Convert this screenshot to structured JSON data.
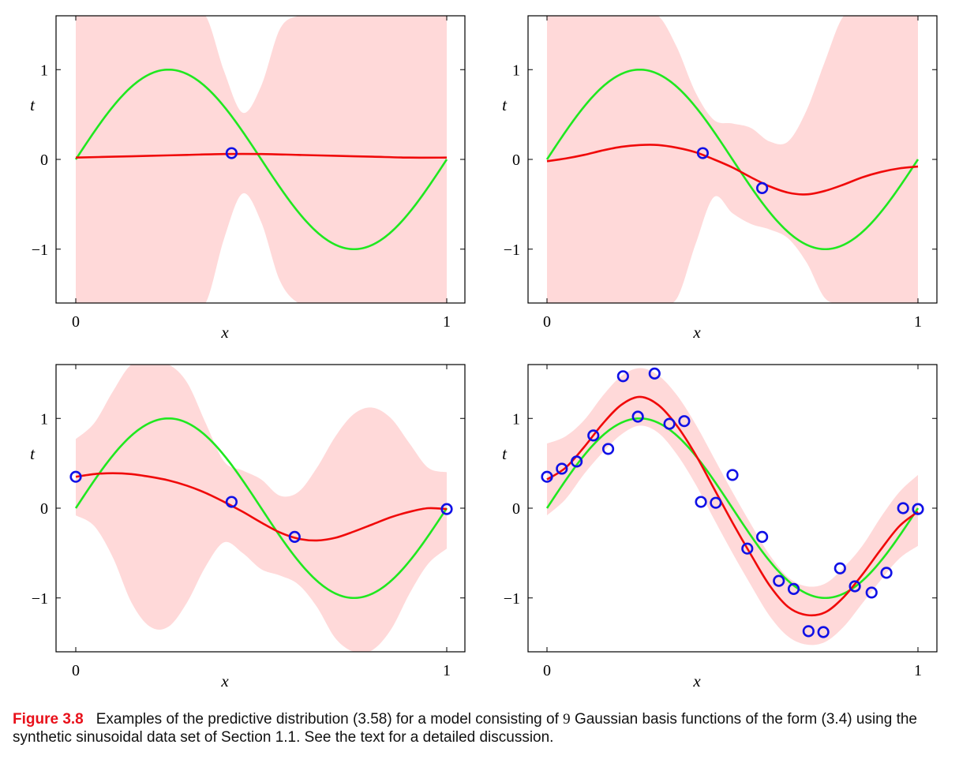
{
  "figure": {
    "colors": {
      "band": "#ffd9d9",
      "mean": "#f00a0a",
      "truth": "#1fe81f",
      "points": "#1010e6",
      "axis": "#000000"
    },
    "x_range": [
      0,
      1
    ],
    "y_range": [
      -1.6,
      1.6
    ],
    "yticks": [
      {
        "v": 1,
        "label": "1"
      },
      {
        "v": 0,
        "label": "0"
      },
      {
        "v": -1,
        "label": "−1"
      }
    ],
    "xticks": [
      {
        "v": 0,
        "label": "0"
      },
      {
        "v": 1,
        "label": "1"
      }
    ]
  },
  "caption": {
    "label": "Figure 3.8",
    "text_before": "Examples of the predictive distribution (3.58) for a model consisting of",
    "n": "9",
    "text_after": "Gaussian basis functions of the form (3.4) using the synthetic sinusoidal data set of Section 1.1. See the text for a detailed discussion."
  },
  "chart_data": [
    {
      "type": "line",
      "xlabel": "x",
      "ylabel": "t",
      "xlim": [
        0,
        1
      ],
      "ylim": [
        -1.6,
        1.6
      ],
      "truth": {
        "function": "sin(2*pi*x)",
        "x": [
          0,
          0.05,
          0.1,
          0.15,
          0.2,
          0.25,
          0.3,
          0.35,
          0.4,
          0.45,
          0.5,
          0.55,
          0.6,
          0.65,
          0.7,
          0.75,
          0.8,
          0.85,
          0.9,
          0.95,
          1.0
        ],
        "y": [
          0,
          0.31,
          0.59,
          0.81,
          0.95,
          1.0,
          0.95,
          0.81,
          0.59,
          0.31,
          0,
          -0.31,
          -0.59,
          -0.81,
          -0.95,
          -1.0,
          -0.95,
          -0.81,
          -0.59,
          -0.31,
          0
        ]
      },
      "mean": {
        "x": [
          0,
          0.1,
          0.2,
          0.3,
          0.4,
          0.5,
          0.6,
          0.7,
          0.8,
          0.9,
          1.0
        ],
        "y": [
          0.02,
          0.03,
          0.04,
          0.05,
          0.06,
          0.06,
          0.05,
          0.04,
          0.03,
          0.02,
          0.02
        ]
      },
      "band": {
        "x": [
          0,
          0.05,
          0.1,
          0.15,
          0.2,
          0.25,
          0.3,
          0.35,
          0.4,
          0.45,
          0.5,
          0.55,
          0.6,
          0.65,
          0.7,
          0.75,
          0.8,
          0.85,
          0.9,
          0.95,
          1.0
        ],
        "upper": [
          1.6,
          1.6,
          1.6,
          1.6,
          1.6,
          1.6,
          1.6,
          1.6,
          0.98,
          0.52,
          0.82,
          1.45,
          1.6,
          1.6,
          1.6,
          1.6,
          1.6,
          1.6,
          1.6,
          1.6,
          1.6
        ],
        "lower": [
          -1.6,
          -1.6,
          -1.6,
          -1.6,
          -1.6,
          -1.6,
          -1.6,
          -1.6,
          -0.88,
          -0.38,
          -0.7,
          -1.35,
          -1.6,
          -1.6,
          -1.6,
          -1.6,
          -1.6,
          -1.6,
          -1.6,
          -1.6,
          -1.6
        ]
      },
      "points": {
        "x": [
          0.42
        ],
        "y": [
          0.07
        ]
      }
    },
    {
      "type": "line",
      "xlabel": "x",
      "ylabel": "t",
      "xlim": [
        0,
        1
      ],
      "ylim": [
        -1.6,
        1.6
      ],
      "truth": {
        "function": "sin(2*pi*x)",
        "x": [
          0,
          0.05,
          0.1,
          0.15,
          0.2,
          0.25,
          0.3,
          0.35,
          0.4,
          0.45,
          0.5,
          0.55,
          0.6,
          0.65,
          0.7,
          0.75,
          0.8,
          0.85,
          0.9,
          0.95,
          1.0
        ],
        "y": [
          0,
          0.31,
          0.59,
          0.81,
          0.95,
          1.0,
          0.95,
          0.81,
          0.59,
          0.31,
          0,
          -0.31,
          -0.59,
          -0.81,
          -0.95,
          -1.0,
          -0.95,
          -0.81,
          -0.59,
          -0.31,
          0
        ]
      },
      "mean": {
        "x": [
          0,
          0.05,
          0.1,
          0.15,
          0.2,
          0.25,
          0.3,
          0.35,
          0.4,
          0.45,
          0.5,
          0.55,
          0.6,
          0.65,
          0.7,
          0.75,
          0.8,
          0.85,
          0.9,
          0.95,
          1.0
        ],
        "y": [
          -0.02,
          0.01,
          0.05,
          0.1,
          0.14,
          0.16,
          0.16,
          0.13,
          0.08,
          0.0,
          -0.09,
          -0.2,
          -0.3,
          -0.37,
          -0.39,
          -0.35,
          -0.28,
          -0.2,
          -0.14,
          -0.1,
          -0.08
        ]
      },
      "band": {
        "x": [
          0,
          0.05,
          0.1,
          0.15,
          0.2,
          0.25,
          0.3,
          0.35,
          0.4,
          0.45,
          0.5,
          0.55,
          0.6,
          0.65,
          0.7,
          0.75,
          0.8,
          0.85,
          0.9,
          0.95,
          1.0
        ],
        "upper": [
          1.6,
          1.6,
          1.6,
          1.6,
          1.6,
          1.6,
          1.6,
          1.25,
          0.75,
          0.44,
          0.4,
          0.35,
          0.2,
          0.2,
          0.55,
          1.1,
          1.6,
          1.6,
          1.6,
          1.6,
          1.6
        ],
        "lower": [
          -1.6,
          -1.6,
          -1.6,
          -1.6,
          -1.6,
          -1.6,
          -1.6,
          -1.55,
          -0.95,
          -0.42,
          -0.6,
          -0.72,
          -0.78,
          -0.88,
          -1.15,
          -1.55,
          -1.6,
          -1.6,
          -1.6,
          -1.6,
          -1.6
        ]
      },
      "points": {
        "x": [
          0.42,
          0.58
        ],
        "y": [
          0.07,
          -0.32
        ]
      }
    },
    {
      "type": "line",
      "xlabel": "x",
      "ylabel": "t",
      "xlim": [
        0,
        1
      ],
      "ylim": [
        -1.6,
        1.6
      ],
      "truth": {
        "function": "sin(2*pi*x)",
        "x": [
          0,
          0.05,
          0.1,
          0.15,
          0.2,
          0.25,
          0.3,
          0.35,
          0.4,
          0.45,
          0.5,
          0.55,
          0.6,
          0.65,
          0.7,
          0.75,
          0.8,
          0.85,
          0.9,
          0.95,
          1.0
        ],
        "y": [
          0,
          0.31,
          0.59,
          0.81,
          0.95,
          1.0,
          0.95,
          0.81,
          0.59,
          0.31,
          0,
          -0.31,
          -0.59,
          -0.81,
          -0.95,
          -1.0,
          -0.95,
          -0.81,
          -0.59,
          -0.31,
          0
        ]
      },
      "mean": {
        "x": [
          0,
          0.05,
          0.1,
          0.15,
          0.2,
          0.25,
          0.3,
          0.35,
          0.4,
          0.45,
          0.5,
          0.55,
          0.6,
          0.65,
          0.7,
          0.75,
          0.8,
          0.85,
          0.9,
          0.95,
          1.0
        ],
        "y": [
          0.35,
          0.38,
          0.39,
          0.38,
          0.35,
          0.31,
          0.25,
          0.17,
          0.07,
          -0.04,
          -0.16,
          -0.27,
          -0.34,
          -0.36,
          -0.33,
          -0.26,
          -0.18,
          -0.1,
          -0.04,
          0.0,
          -0.01
        ]
      },
      "band": {
        "x": [
          0,
          0.05,
          0.1,
          0.15,
          0.2,
          0.25,
          0.3,
          0.35,
          0.4,
          0.45,
          0.5,
          0.55,
          0.6,
          0.65,
          0.7,
          0.75,
          0.8,
          0.85,
          0.9,
          0.95,
          1.0
        ],
        "upper": [
          0.77,
          0.95,
          1.3,
          1.6,
          1.6,
          1.6,
          1.4,
          0.95,
          0.52,
          0.42,
          0.32,
          0.14,
          0.18,
          0.45,
          0.8,
          1.05,
          1.12,
          1.0,
          0.72,
          0.45,
          0.4
        ],
        "lower": [
          -0.08,
          -0.2,
          -0.55,
          -1.05,
          -1.32,
          -1.32,
          -1.05,
          -0.65,
          -0.38,
          -0.5,
          -0.68,
          -0.75,
          -0.85,
          -1.1,
          -1.45,
          -1.6,
          -1.58,
          -1.35,
          -0.95,
          -0.62,
          -0.45
        ]
      },
      "points": {
        "x": [
          0.0,
          0.42,
          0.59,
          1.0
        ],
        "y": [
          0.35,
          0.07,
          -0.32,
          -0.01
        ]
      }
    },
    {
      "type": "line",
      "xlabel": "x",
      "ylabel": "t",
      "xlim": [
        0,
        1
      ],
      "ylim": [
        -1.6,
        1.6
      ],
      "truth": {
        "function": "sin(2*pi*x)",
        "x": [
          0,
          0.05,
          0.1,
          0.15,
          0.2,
          0.25,
          0.3,
          0.35,
          0.4,
          0.45,
          0.5,
          0.55,
          0.6,
          0.65,
          0.7,
          0.75,
          0.8,
          0.85,
          0.9,
          0.95,
          1.0
        ],
        "y": [
          0,
          0.31,
          0.59,
          0.81,
          0.95,
          1.0,
          0.95,
          0.81,
          0.59,
          0.31,
          0,
          -0.31,
          -0.59,
          -0.81,
          -0.95,
          -1.0,
          -0.95,
          -0.81,
          -0.59,
          -0.31,
          0
        ]
      },
      "mean": {
        "x": [
          0,
          0.05,
          0.1,
          0.15,
          0.2,
          0.25,
          0.3,
          0.35,
          0.4,
          0.45,
          0.5,
          0.55,
          0.6,
          0.65,
          0.7,
          0.75,
          0.8,
          0.85,
          0.9,
          0.95,
          1.0
        ],
        "y": [
          0.32,
          0.45,
          0.68,
          0.94,
          1.15,
          1.24,
          1.15,
          0.92,
          0.6,
          0.22,
          -0.16,
          -0.52,
          -0.86,
          -1.1,
          -1.19,
          -1.16,
          -0.99,
          -0.74,
          -0.46,
          -0.2,
          -0.04
        ]
      },
      "band": {
        "x": [
          0,
          0.05,
          0.1,
          0.15,
          0.2,
          0.25,
          0.3,
          0.35,
          0.4,
          0.45,
          0.5,
          0.55,
          0.6,
          0.65,
          0.7,
          0.75,
          0.8,
          0.85,
          0.9,
          0.95,
          1.0
        ],
        "upper": [
          0.72,
          0.8,
          0.98,
          1.25,
          1.47,
          1.56,
          1.48,
          1.26,
          0.94,
          0.56,
          0.18,
          -0.18,
          -0.52,
          -0.77,
          -0.87,
          -0.84,
          -0.66,
          -0.42,
          -0.1,
          0.18,
          0.37
        ]
      },
      "band_lower": {
        "y": [
          -0.08,
          0.1,
          0.38,
          0.62,
          0.82,
          0.92,
          0.84,
          0.6,
          0.27,
          -0.12,
          -0.5,
          -0.86,
          -1.2,
          -1.43,
          -1.52,
          -1.49,
          -1.32,
          -1.06,
          -0.8,
          -0.56,
          -0.42
        ]
      },
      "points": {
        "x": [
          0.0,
          0.04,
          0.08,
          0.125,
          0.165,
          0.205,
          0.245,
          0.29,
          0.33,
          0.37,
          0.415,
          0.455,
          0.5,
          0.54,
          0.58,
          0.625,
          0.665,
          0.705,
          0.745,
          0.79,
          0.83,
          0.875,
          0.915,
          0.96,
          1.0
        ],
        "y": [
          0.35,
          0.44,
          0.52,
          0.81,
          0.66,
          1.47,
          1.02,
          1.5,
          0.94,
          0.97,
          0.07,
          0.06,
          0.37,
          -0.45,
          -0.32,
          -0.81,
          -0.9,
          -1.37,
          -1.38,
          -0.67,
          -0.87,
          -0.94,
          -0.72,
          0.0,
          -0.01
        ]
      }
    }
  ]
}
